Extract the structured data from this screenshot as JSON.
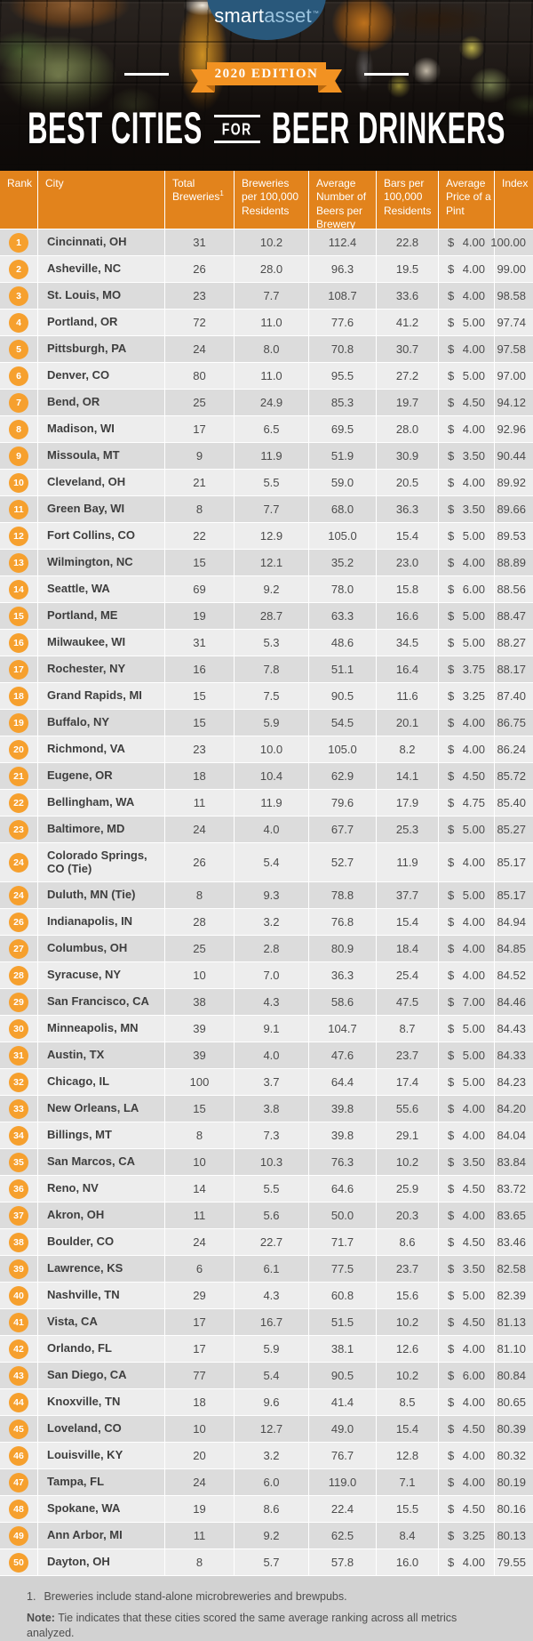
{
  "header": {
    "logo": {
      "part1": "smart",
      "part2": "asset",
      "tm": "™"
    },
    "edition_badge": "2020 EDITION",
    "title": {
      "left": "BEST CITIES",
      "middle": "FOR",
      "right": "BEER DRINKERS"
    }
  },
  "colors": {
    "header_orange": "#e2831c",
    "circle_orange": "#f6a02e",
    "ribbon_orange": "#f29222",
    "row_dark": "#dcdcdc",
    "row_light": "#ededed",
    "footer_gray": "#d2d2d2",
    "logo_navy": "#29587b",
    "logo_lightblue": "#9cc4df"
  },
  "chart_data": {
    "type": "table",
    "title": "BEST CITIES FOR BEER DRINKERS",
    "subtitle": "2020 EDITION",
    "columns": [
      {
        "key": "rank",
        "label": "Rank"
      },
      {
        "key": "city",
        "label": "City"
      },
      {
        "key": "total",
        "label": "Total Breweries",
        "sup": "1"
      },
      {
        "key": "per100k",
        "label": "Breweries per 100,000 Residents"
      },
      {
        "key": "beers",
        "label": "Average Number of Beers per Brewery"
      },
      {
        "key": "bars",
        "label": "Bars per 100,000 Residents"
      },
      {
        "key": "price",
        "label": "Average Price of a Pint"
      },
      {
        "key": "index",
        "label": "Index"
      }
    ],
    "rows": [
      {
        "rank": "1",
        "city": "Cincinnati, OH",
        "total": "31",
        "per100k": "10.2",
        "beers": "112.4",
        "bars": "22.8",
        "price_symbol": "$",
        "price": "4.00",
        "index": "100.00"
      },
      {
        "rank": "2",
        "city": "Asheville, NC",
        "total": "26",
        "per100k": "28.0",
        "beers": "96.3",
        "bars": "19.5",
        "price_symbol": "$",
        "price": "4.00",
        "index": "99.00"
      },
      {
        "rank": "3",
        "city": "St. Louis, MO",
        "total": "23",
        "per100k": "7.7",
        "beers": "108.7",
        "bars": "33.6",
        "price_symbol": "$",
        "price": "4.00",
        "index": "98.58"
      },
      {
        "rank": "4",
        "city": "Portland, OR",
        "total": "72",
        "per100k": "11.0",
        "beers": "77.6",
        "bars": "41.2",
        "price_symbol": "$",
        "price": "5.00",
        "index": "97.74"
      },
      {
        "rank": "5",
        "city": "Pittsburgh, PA",
        "total": "24",
        "per100k": "8.0",
        "beers": "70.8",
        "bars": "30.7",
        "price_symbol": "$",
        "price": "4.00",
        "index": "97.58"
      },
      {
        "rank": "6",
        "city": "Denver, CO",
        "total": "80",
        "per100k": "11.0",
        "beers": "95.5",
        "bars": "27.2",
        "price_symbol": "$",
        "price": "5.00",
        "index": "97.00"
      },
      {
        "rank": "7",
        "city": "Bend, OR",
        "total": "25",
        "per100k": "24.9",
        "beers": "85.3",
        "bars": "19.7",
        "price_symbol": "$",
        "price": "4.50",
        "index": "94.12"
      },
      {
        "rank": "8",
        "city": "Madison, WI",
        "total": "17",
        "per100k": "6.5",
        "beers": "69.5",
        "bars": "28.0",
        "price_symbol": "$",
        "price": "4.00",
        "index": "92.96"
      },
      {
        "rank": "9",
        "city": "Missoula, MT",
        "total": "9",
        "per100k": "11.9",
        "beers": "51.9",
        "bars": "30.9",
        "price_symbol": "$",
        "price": "3.50",
        "index": "90.44"
      },
      {
        "rank": "10",
        "city": "Cleveland, OH",
        "total": "21",
        "per100k": "5.5",
        "beers": "59.0",
        "bars": "20.5",
        "price_symbol": "$",
        "price": "4.00",
        "index": "89.92"
      },
      {
        "rank": "11",
        "city": "Green Bay, WI",
        "total": "8",
        "per100k": "7.7",
        "beers": "68.0",
        "bars": "36.3",
        "price_symbol": "$",
        "price": "3.50",
        "index": "89.66"
      },
      {
        "rank": "12",
        "city": "Fort Collins, CO",
        "total": "22",
        "per100k": "12.9",
        "beers": "105.0",
        "bars": "15.4",
        "price_symbol": "$",
        "price": "5.00",
        "index": "89.53"
      },
      {
        "rank": "13",
        "city": "Wilmington, NC",
        "total": "15",
        "per100k": "12.1",
        "beers": "35.2",
        "bars": "23.0",
        "price_symbol": "$",
        "price": "4.00",
        "index": "88.89"
      },
      {
        "rank": "14",
        "city": "Seattle, WA",
        "total": "69",
        "per100k": "9.2",
        "beers": "78.0",
        "bars": "15.8",
        "price_symbol": "$",
        "price": "6.00",
        "index": "88.56"
      },
      {
        "rank": "15",
        "city": "Portland, ME",
        "total": "19",
        "per100k": "28.7",
        "beers": "63.3",
        "bars": "16.6",
        "price_symbol": "$",
        "price": "5.00",
        "index": "88.47"
      },
      {
        "rank": "16",
        "city": "Milwaukee, WI",
        "total": "31",
        "per100k": "5.3",
        "beers": "48.6",
        "bars": "34.5",
        "price_symbol": "$",
        "price": "5.00",
        "index": "88.27"
      },
      {
        "rank": "17",
        "city": "Rochester, NY",
        "total": "16",
        "per100k": "7.8",
        "beers": "51.1",
        "bars": "16.4",
        "price_symbol": "$",
        "price": "3.75",
        "index": "88.17"
      },
      {
        "rank": "18",
        "city": "Grand Rapids, MI",
        "total": "15",
        "per100k": "7.5",
        "beers": "90.5",
        "bars": "11.6",
        "price_symbol": "$",
        "price": "3.25",
        "index": "87.40"
      },
      {
        "rank": "19",
        "city": "Buffalo, NY",
        "total": "15",
        "per100k": "5.9",
        "beers": "54.5",
        "bars": "20.1",
        "price_symbol": "$",
        "price": "4.00",
        "index": "86.75"
      },
      {
        "rank": "20",
        "city": "Richmond, VA",
        "total": "23",
        "per100k": "10.0",
        "beers": "105.0",
        "bars": "8.2",
        "price_symbol": "$",
        "price": "4.00",
        "index": "86.24"
      },
      {
        "rank": "21",
        "city": "Eugene, OR",
        "total": "18",
        "per100k": "10.4",
        "beers": "62.9",
        "bars": "14.1",
        "price_symbol": "$",
        "price": "4.50",
        "index": "85.72"
      },
      {
        "rank": "22",
        "city": "Bellingham, WA",
        "total": "11",
        "per100k": "11.9",
        "beers": "79.6",
        "bars": "17.9",
        "price_symbol": "$",
        "price": "4.75",
        "index": "85.40"
      },
      {
        "rank": "23",
        "city": "Baltimore, MD",
        "total": "24",
        "per100k": "4.0",
        "beers": "67.7",
        "bars": "25.3",
        "price_symbol": "$",
        "price": "5.00",
        "index": "85.27"
      },
      {
        "rank": "24",
        "city": "Colorado Springs, CO (Tie)",
        "total": "26",
        "per100k": "5.4",
        "beers": "52.7",
        "bars": "11.9",
        "price_symbol": "$",
        "price": "4.00",
        "index": "85.17",
        "tall": true
      },
      {
        "rank": "24",
        "city": "Duluth, MN (Tie)",
        "total": "8",
        "per100k": "9.3",
        "beers": "78.8",
        "bars": "37.7",
        "price_symbol": "$",
        "price": "5.00",
        "index": "85.17"
      },
      {
        "rank": "26",
        "city": "Indianapolis, IN",
        "total": "28",
        "per100k": "3.2",
        "beers": "76.8",
        "bars": "15.4",
        "price_symbol": "$",
        "price": "4.00",
        "index": "84.94"
      },
      {
        "rank": "27",
        "city": "Columbus, OH",
        "total": "25",
        "per100k": "2.8",
        "beers": "80.9",
        "bars": "18.4",
        "price_symbol": "$",
        "price": "4.00",
        "index": "84.85"
      },
      {
        "rank": "28",
        "city": "Syracuse, NY",
        "total": "10",
        "per100k": "7.0",
        "beers": "36.3",
        "bars": "25.4",
        "price_symbol": "$",
        "price": "4.00",
        "index": "84.52"
      },
      {
        "rank": "29",
        "city": "San Francisco, CA",
        "total": "38",
        "per100k": "4.3",
        "beers": "58.6",
        "bars": "47.5",
        "price_symbol": "$",
        "price": "7.00",
        "index": "84.46"
      },
      {
        "rank": "30",
        "city": "Minneapolis, MN",
        "total": "39",
        "per100k": "9.1",
        "beers": "104.7",
        "bars": "8.7",
        "price_symbol": "$",
        "price": "5.00",
        "index": "84.43"
      },
      {
        "rank": "31",
        "city": "Austin, TX",
        "total": "39",
        "per100k": "4.0",
        "beers": "47.6",
        "bars": "23.7",
        "price_symbol": "$",
        "price": "5.00",
        "index": "84.33"
      },
      {
        "rank": "32",
        "city": "Chicago, IL",
        "total": "100",
        "per100k": "3.7",
        "beers": "64.4",
        "bars": "17.4",
        "price_symbol": "$",
        "price": "5.00",
        "index": "84.23"
      },
      {
        "rank": "33",
        "city": "New Orleans, LA",
        "total": "15",
        "per100k": "3.8",
        "beers": "39.8",
        "bars": "55.6",
        "price_symbol": "$",
        "price": "4.00",
        "index": "84.20"
      },
      {
        "rank": "34",
        "city": "Billings, MT",
        "total": "8",
        "per100k": "7.3",
        "beers": "39.8",
        "bars": "29.1",
        "price_symbol": "$",
        "price": "4.00",
        "index": "84.04"
      },
      {
        "rank": "35",
        "city": "San Marcos, CA",
        "total": "10",
        "per100k": "10.3",
        "beers": "76.3",
        "bars": "10.2",
        "price_symbol": "$",
        "price": "3.50",
        "index": "83.84"
      },
      {
        "rank": "36",
        "city": "Reno, NV",
        "total": "14",
        "per100k": "5.5",
        "beers": "64.6",
        "bars": "25.9",
        "price_symbol": "$",
        "price": "4.50",
        "index": "83.72"
      },
      {
        "rank": "37",
        "city": "Akron, OH",
        "total": "11",
        "per100k": "5.6",
        "beers": "50.0",
        "bars": "20.3",
        "price_symbol": "$",
        "price": "4.00",
        "index": "83.65"
      },
      {
        "rank": "38",
        "city": "Boulder, CO",
        "total": "24",
        "per100k": "22.7",
        "beers": "71.7",
        "bars": "8.6",
        "price_symbol": "$",
        "price": "4.50",
        "index": "83.46"
      },
      {
        "rank": "39",
        "city": "Lawrence, KS",
        "total": "6",
        "per100k": "6.1",
        "beers": "77.5",
        "bars": "23.7",
        "price_symbol": "$",
        "price": "3.50",
        "index": "82.58"
      },
      {
        "rank": "40",
        "city": "Nashville, TN",
        "total": "29",
        "per100k": "4.3",
        "beers": "60.8",
        "bars": "15.6",
        "price_symbol": "$",
        "price": "5.00",
        "index": "82.39"
      },
      {
        "rank": "41",
        "city": "Vista, CA",
        "total": "17",
        "per100k": "16.7",
        "beers": "51.5",
        "bars": "10.2",
        "price_symbol": "$",
        "price": "4.50",
        "index": "81.13"
      },
      {
        "rank": "42",
        "city": "Orlando, FL",
        "total": "17",
        "per100k": "5.9",
        "beers": "38.1",
        "bars": "12.6",
        "price_symbol": "$",
        "price": "4.00",
        "index": "81.10"
      },
      {
        "rank": "43",
        "city": "San Diego, CA",
        "total": "77",
        "per100k": "5.4",
        "beers": "90.5",
        "bars": "10.2",
        "price_symbol": "$",
        "price": "6.00",
        "index": "80.84"
      },
      {
        "rank": "44",
        "city": "Knoxville, TN",
        "total": "18",
        "per100k": "9.6",
        "beers": "41.4",
        "bars": "8.5",
        "price_symbol": "$",
        "price": "4.00",
        "index": "80.65"
      },
      {
        "rank": "45",
        "city": "Loveland, CO",
        "total": "10",
        "per100k": "12.7",
        "beers": "49.0",
        "bars": "15.4",
        "price_symbol": "$",
        "price": "4.50",
        "index": "80.39"
      },
      {
        "rank": "46",
        "city": "Louisville, KY",
        "total": "20",
        "per100k": "3.2",
        "beers": "76.7",
        "bars": "12.8",
        "price_symbol": "$",
        "price": "4.00",
        "index": "80.32"
      },
      {
        "rank": "47",
        "city": "Tampa, FL",
        "total": "24",
        "per100k": "6.0",
        "beers": "119.0",
        "bars": "7.1",
        "price_symbol": "$",
        "price": "4.00",
        "index": "80.19"
      },
      {
        "rank": "48",
        "city": "Spokane, WA",
        "total": "19",
        "per100k": "8.6",
        "beers": "22.4",
        "bars": "15.5",
        "price_symbol": "$",
        "price": "4.50",
        "index": "80.16"
      },
      {
        "rank": "49",
        "city": "Ann Arbor, MI",
        "total": "11",
        "per100k": "9.2",
        "beers": "62.5",
        "bars": "8.4",
        "price_symbol": "$",
        "price": "3.25",
        "index": "80.13"
      },
      {
        "rank": "50",
        "city": "Dayton, OH",
        "total": "8",
        "per100k": "5.7",
        "beers": "57.8",
        "bars": "16.0",
        "price_symbol": "$",
        "price": "4.00",
        "index": "79.55"
      }
    ]
  },
  "notes": {
    "fn_marker": "1.",
    "fn_text": "Breweries include stand-alone microbreweries and brewpubs.",
    "note_label": "Note:",
    "note_text": "Tie indicates that these cities scored the same average ranking across all metrics analyzed."
  }
}
